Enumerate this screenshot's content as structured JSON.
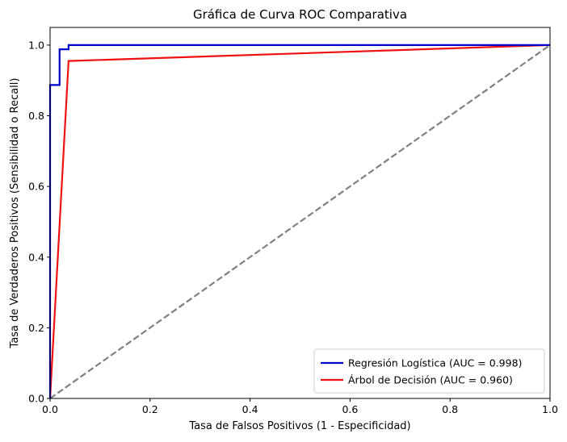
{
  "chart_data": {
    "type": "line",
    "title": "Gráfica de Curva ROC Comparativa",
    "xlabel": "Tasa de Falsos Positivos (1 - Especificidad)",
    "ylabel": "Tasa de Verdaderos Positivos (Sensibilidad o Recall)",
    "xlim": [
      0.0,
      1.0
    ],
    "ylim": [
      0.0,
      1.05
    ],
    "xticks": [
      0.0,
      0.2,
      0.4,
      0.6,
      0.8,
      1.0
    ],
    "yticks": [
      0.0,
      0.2,
      0.4,
      0.6,
      0.8,
      1.0
    ],
    "xtick_labels": [
      "0.0",
      "0.2",
      "0.4",
      "0.6",
      "0.8",
      "1.0"
    ],
    "ytick_labels": [
      "0.0",
      "0.2",
      "0.4",
      "0.6",
      "0.8",
      "1.0"
    ],
    "grid": false,
    "legend_position": "lower-right",
    "series": [
      {
        "name": "Regresión Logística (AUC = 0.998)",
        "color": "#0000cc",
        "style": "solid",
        "points": [
          [
            0.0,
            0.0
          ],
          [
            0.0,
            0.887
          ],
          [
            0.019,
            0.887
          ],
          [
            0.019,
            0.988
          ],
          [
            0.037,
            0.988
          ],
          [
            0.037,
            1.0
          ],
          [
            1.0,
            1.0
          ]
        ]
      },
      {
        "name": "Árbol de Decisión (AUC = 0.960)",
        "color": "#ee1111",
        "style": "solid",
        "points": [
          [
            0.0,
            0.0
          ],
          [
            0.037,
            0.955
          ],
          [
            1.0,
            1.0
          ]
        ]
      },
      {
        "color": "#808080",
        "style": "dashed",
        "points": [
          [
            0.0,
            0.0
          ],
          [
            1.0,
            1.0
          ]
        ]
      }
    ]
  }
}
